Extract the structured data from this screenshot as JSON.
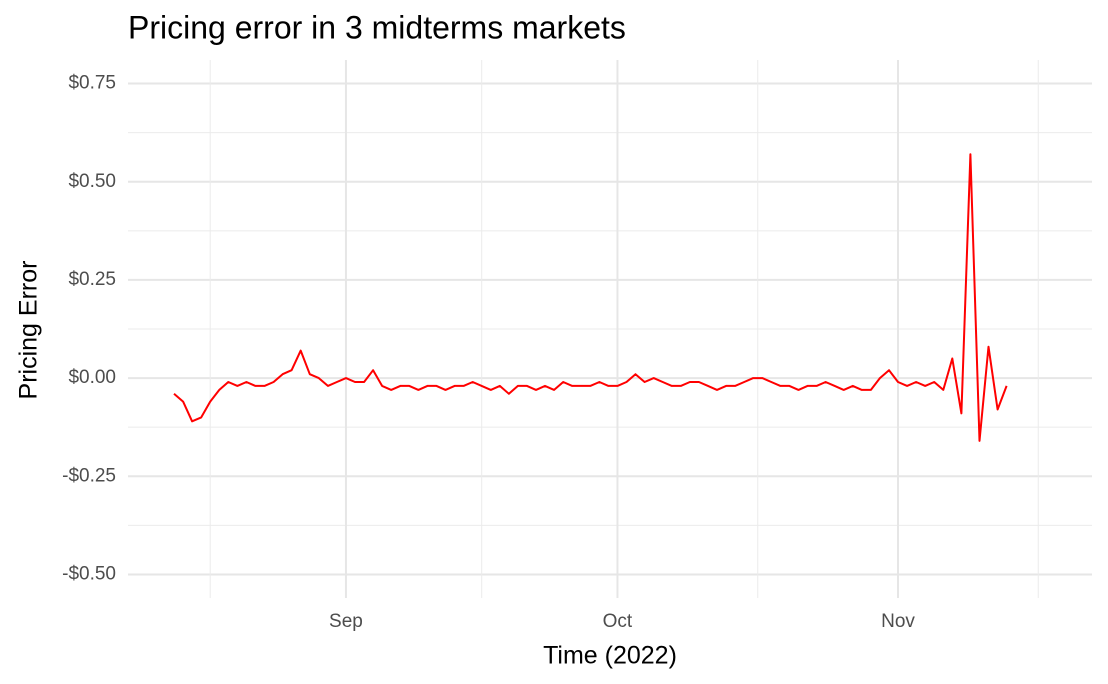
{
  "chart_data": {
    "type": "line",
    "title": "Pricing error in 3 midterms markets",
    "x_label": "Time (2022)",
    "y_label": "Pricing Error",
    "categories": [
      null,
      null,
      null,
      null,
      null,
      null,
      null,
      null,
      null,
      null,
      null,
      null,
      null,
      null,
      null,
      null,
      null,
      null,
      null,
      "Sep",
      null,
      null,
      null,
      null,
      null,
      null,
      null,
      null,
      null,
      null,
      null,
      null,
      null,
      null,
      null,
      null,
      null,
      null,
      null,
      null,
      null,
      null,
      null,
      null,
      null,
      null,
      null,
      null,
      null,
      "Oct",
      null,
      null,
      null,
      null,
      null,
      null,
      null,
      null,
      null,
      null,
      null,
      null,
      null,
      null,
      null,
      null,
      null,
      null,
      null,
      null,
      null,
      null,
      null,
      null,
      null,
      null,
      null,
      null,
      null,
      null,
      "Nov",
      null,
      null,
      null,
      null,
      null,
      null,
      null,
      null,
      null,
      null,
      null,
      null
    ],
    "values": [
      -0.04,
      -0.06,
      -0.11,
      -0.1,
      -0.06,
      -0.03,
      -0.01,
      -0.02,
      -0.01,
      -0.02,
      -0.02,
      -0.01,
      0.01,
      0.02,
      0.07,
      0.01,
      0.0,
      -0.02,
      -0.01,
      0.0,
      -0.01,
      -0.01,
      0.02,
      -0.02,
      -0.03,
      -0.02,
      -0.02,
      -0.03,
      -0.02,
      -0.02,
      -0.03,
      -0.02,
      -0.02,
      -0.01,
      -0.02,
      -0.03,
      -0.02,
      -0.04,
      -0.02,
      -0.02,
      -0.03,
      -0.02,
      -0.03,
      -0.01,
      -0.02,
      -0.02,
      -0.02,
      -0.01,
      -0.02,
      -0.02,
      -0.01,
      0.01,
      -0.01,
      0.0,
      -0.01,
      -0.02,
      -0.02,
      -0.01,
      -0.01,
      -0.02,
      -0.03,
      -0.02,
      -0.02,
      -0.01,
      0.0,
      0.0,
      -0.01,
      -0.02,
      -0.02,
      -0.03,
      -0.02,
      -0.02,
      -0.01,
      -0.02,
      -0.03,
      -0.02,
      -0.03,
      -0.03,
      0.0,
      0.02,
      -0.01,
      -0.02,
      -0.01,
      -0.02,
      -0.01,
      -0.03,
      0.05,
      -0.09,
      0.57,
      -0.16,
      0.08,
      -0.08,
      -0.02
    ],
    "color": "#ff0000",
    "ylim": [
      -0.56,
      0.81
    ],
    "yticks": [
      {
        "value": -0.5,
        "label": "-$0.50"
      },
      {
        "value": -0.25,
        "label": "-$0.25"
      },
      {
        "value": 0,
        "label": "$0.00"
      },
      {
        "value": 0.25,
        "label": "$0.25"
      },
      {
        "value": 0.5,
        "label": "$0.50"
      },
      {
        "value": 0.75,
        "label": "$0.75"
      }
    ],
    "grid": true
  }
}
